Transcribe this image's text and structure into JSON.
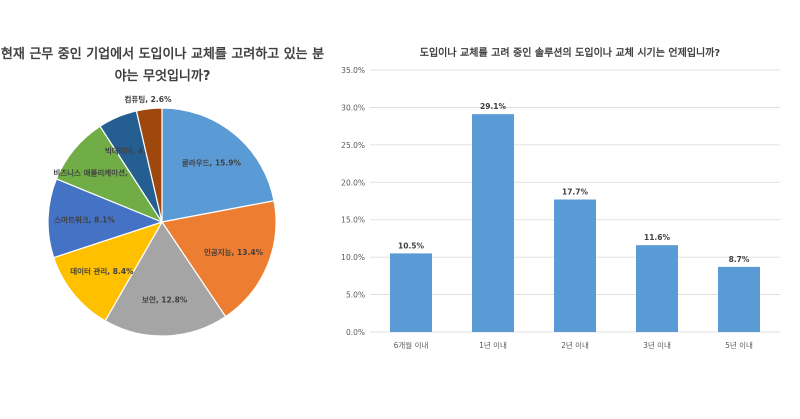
{
  "chart_data": [
    {
      "type": "pie",
      "title": "현재 근무 중인 기업에서 도입이나 교체를 고려하고 있는 분야는 무엇입니까?",
      "labels": [
        "클라우드",
        "인공지능",
        "보안",
        "데이터 관리",
        "스마트워크",
        "비즈니스 애플리케이션",
        "빅데이터",
        "컴퓨팅"
      ],
      "values": [
        15.9,
        13.4,
        12.8,
        8.4,
        8.1,
        7.0,
        4.0,
        2.6
      ],
      "colors": [
        "#5b9bd5",
        "#ed7d31",
        "#a5a5a5",
        "#ffc000",
        "#4472c4",
        "#70ad47",
        "#255e91",
        "#9e480e"
      ]
    },
    {
      "type": "bar",
      "title": "도입이나 교체를 고려 중인 솔루션의 도입이나 교체 시기는 언제입니까?",
      "categories": [
        "6개월 이내",
        "1년 이내",
        "2년 이내",
        "3년 이내",
        "5년 이내"
      ],
      "values": [
        10.5,
        29.1,
        17.7,
        11.6,
        8.7
      ],
      "ylim": [
        0,
        35
      ],
      "yticks": [
        "0.0%",
        "5.0%",
        "10.0%",
        "15.0%",
        "20.0%",
        "25.0%",
        "30.0%",
        "35.0%"
      ],
      "grid": true,
      "color": "#5b9bd5"
    }
  ]
}
